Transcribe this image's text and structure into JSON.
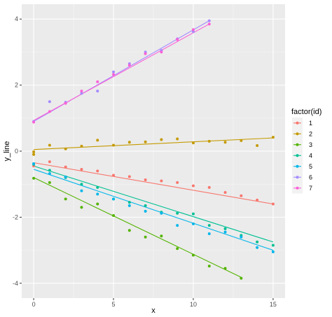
{
  "chart_data": {
    "type": "scatter",
    "xlabel": "x",
    "ylabel": "y_line",
    "xlim": [
      -0.75,
      15.75
    ],
    "ylim": [
      -4.45,
      4.45
    ],
    "x_ticks": [
      0,
      5,
      10,
      15
    ],
    "y_ticks": [
      -4,
      -2,
      0,
      2,
      4
    ],
    "x_tick_labels": [
      "0",
      "5",
      "10",
      "15"
    ],
    "y_tick_labels": [
      "-4",
      "-2",
      "0",
      "2",
      "4"
    ],
    "grid": true,
    "panel_background": "#ebebeb",
    "legend": {
      "title": "factor(id)",
      "position": "right",
      "entries": [
        "1",
        "2",
        "3",
        "4",
        "5",
        "6",
        "7"
      ]
    },
    "series": [
      {
        "name": "1",
        "color": "#F8766D",
        "x": [
          0,
          1,
          2,
          3,
          4,
          5,
          6,
          7,
          8,
          9,
          10,
          11,
          12,
          13,
          14,
          15
        ],
        "y": [
          -0.45,
          -0.32,
          -0.48,
          -0.55,
          -0.6,
          -0.73,
          -0.77,
          -0.87,
          -0.9,
          -0.95,
          -1.05,
          -1.1,
          -1.25,
          -1.35,
          -1.48,
          -1.6
        ],
        "fit": [
          [
            0,
            -0.35
          ],
          [
            15,
            -1.6
          ]
        ]
      },
      {
        "name": "2",
        "color": "#C49A00",
        "x": [
          0,
          0,
          1,
          2,
          3,
          4,
          5,
          6,
          7,
          8,
          9,
          10,
          11,
          12,
          13,
          14,
          15
        ],
        "y": [
          -0.02,
          -0.1,
          0.18,
          0.07,
          0.15,
          0.33,
          0.18,
          0.27,
          0.28,
          0.35,
          0.37,
          0.25,
          0.3,
          0.27,
          0.32,
          0.17,
          0.42
        ],
        "fit": [
          [
            0,
            0.05
          ],
          [
            15,
            0.4
          ]
        ]
      },
      {
        "name": "3",
        "color": "#53B400",
        "x": [
          0,
          1,
          2,
          3,
          4,
          5,
          6,
          7,
          8,
          9,
          10,
          11,
          12,
          13
        ],
        "y": [
          -0.82,
          -0.95,
          -1.45,
          -1.7,
          -1.6,
          -1.95,
          -2.4,
          -2.6,
          -2.57,
          -2.95,
          -3.15,
          -3.48,
          -3.55,
          -3.85
        ],
        "fit": [
          [
            0,
            -0.8
          ],
          [
            13,
            -3.82
          ]
        ]
      },
      {
        "name": "4",
        "color": "#00C094",
        "x": [
          0,
          1,
          2,
          3,
          4,
          5,
          6,
          7,
          8,
          9,
          10,
          11,
          12,
          13,
          14,
          15
        ],
        "y": [
          -0.4,
          -0.58,
          -0.8,
          -1.0,
          -1.1,
          -1.45,
          -1.55,
          -1.65,
          -1.85,
          -1.88,
          -1.9,
          -2.25,
          -2.35,
          -2.55,
          -2.75,
          -2.85
        ],
        "fit": [
          [
            0,
            -0.45
          ],
          [
            15,
            -2.75
          ]
        ]
      },
      {
        "name": "5",
        "color": "#00B6EB",
        "x": [
          0,
          1,
          2,
          3,
          4,
          5,
          6,
          7,
          8,
          9,
          10,
          11,
          12,
          13,
          14,
          15
        ],
        "y": [
          -0.38,
          -0.68,
          -0.78,
          -1.2,
          -1.3,
          -1.45,
          -1.65,
          -1.82,
          -1.88,
          -2.25,
          -2.2,
          -2.5,
          -2.45,
          -2.6,
          -2.92,
          -3.05
        ],
        "fit": [
          [
            0,
            -0.55
          ],
          [
            15,
            -3.0
          ]
        ]
      },
      {
        "name": "6",
        "color": "#A58AFF",
        "x": [
          0,
          1,
          2,
          3,
          4,
          5,
          6,
          7,
          8,
          9,
          10,
          11
        ],
        "y": [
          0.9,
          1.5,
          1.48,
          1.75,
          1.82,
          2.4,
          2.65,
          3.0,
          3.05,
          3.4,
          3.62,
          3.95
        ],
        "fit": [
          [
            0,
            0.9
          ],
          [
            11,
            3.95
          ]
        ]
      },
      {
        "name": "7",
        "color": "#FB61D7",
        "x": [
          0,
          1,
          2,
          3,
          4,
          5,
          6,
          7,
          8,
          9,
          10,
          11
        ],
        "y": [
          0.88,
          1.2,
          1.45,
          1.82,
          2.1,
          2.32,
          2.6,
          2.95,
          3.0,
          3.38,
          3.68,
          3.85
        ],
        "fit": [
          [
            0,
            0.93
          ],
          [
            11,
            3.85
          ]
        ]
      }
    ]
  }
}
